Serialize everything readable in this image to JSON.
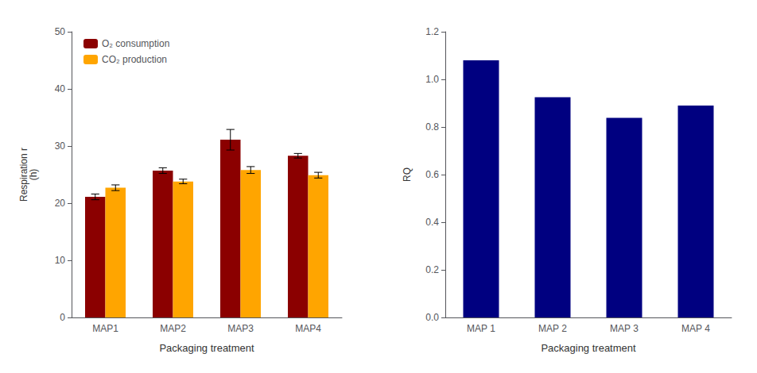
{
  "chart_data": [
    {
      "type": "bar",
      "categories": [
        "MAP1",
        "MAP2",
        "MAP3",
        "MAP4"
      ],
      "series": [
        {
          "name": "O₂ consumption",
          "color": "#8B0000",
          "values": [
            21.1,
            25.7,
            31.1,
            28.3
          ],
          "errors": [
            0.5,
            0.5,
            1.8,
            0.4
          ]
        },
        {
          "name": "CO₂ production",
          "color": "#FFA500",
          "values": [
            22.7,
            23.8,
            25.8,
            24.9
          ],
          "errors": [
            0.5,
            0.4,
            0.6,
            0.5
          ]
        }
      ],
      "xlabel": "Packaging treatment",
      "ylabel": "Respiration r\n(h)",
      "ylim": [
        0,
        50
      ],
      "yticks": [
        0,
        10,
        20,
        30,
        40,
        50
      ],
      "legend": "upper left",
      "grid": false
    },
    {
      "type": "bar",
      "categories": [
        "MAP 1",
        "MAP 2",
        "MAP 3",
        "MAP 4"
      ],
      "values": [
        1.08,
        0.925,
        0.838,
        0.89
      ],
      "color": "#000080",
      "xlabel": "Packaging treatment",
      "ylabel": "RQ",
      "ylim": [
        0.0,
        1.2
      ],
      "yticks": [
        {
          "value": 0.0,
          "label": "0.0"
        },
        0.2,
        0.4,
        0.6,
        0.8,
        {
          "value": 1.0,
          "label": "1.0"
        },
        1.2
      ],
      "grid": false
    }
  ]
}
